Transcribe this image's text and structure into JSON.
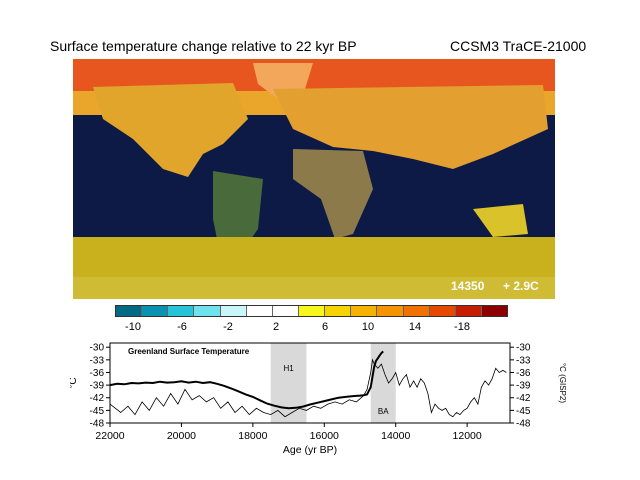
{
  "header": {
    "title": "Surface temperature change relative to 22 kyr BP",
    "model": "CCSM3 TraCE-21000"
  },
  "map": {
    "year_label": "14350",
    "anomaly_label": "+ 2.9C",
    "ocean_color": "#0d1a45",
    "polar_warm_color": "#e8561f",
    "midlat_color": "#e9a62b",
    "tropical_color": "#c8b11d",
    "land_colors": [
      "#8d7a4a",
      "#496a3a",
      "#d2b98a"
    ]
  },
  "colorbar": {
    "colors": [
      "#006a85",
      "#0a93b0",
      "#27c3d8",
      "#6fe2ee",
      "#c8f6fa",
      "#ffffff",
      "#ffffff",
      "#f7f71e",
      "#f5d400",
      "#f5b300",
      "#f59300",
      "#f07000",
      "#e64a00",
      "#c81e00",
      "#8c0000"
    ],
    "tick_labels": [
      "-10",
      "-6",
      "-2",
      "2",
      "6",
      "10",
      "14",
      "-18"
    ]
  },
  "chart_data": {
    "type": "line",
    "title": "Greenland Surface Temperature",
    "xlabel": "Age (yr BP)",
    "ylabel_left": "°C",
    "ylabel_right": "°C (GISP2)",
    "xlim": [
      22000,
      10800
    ],
    "ylim": [
      -48,
      -29
    ],
    "x_ticks": [
      22000,
      20000,
      18000,
      16000,
      14000,
      12000
    ],
    "x_tick_labels": [
      "22000",
      "20000",
      "18000",
      "16000",
      "14000",
      "12000"
    ],
    "y_ticks": [
      -30,
      -33,
      -36,
      -39,
      -42,
      -45,
      -48
    ],
    "y_tick_labels": [
      "-30",
      "-33",
      "-36",
      "-39",
      "-42",
      "-45",
      "-48"
    ],
    "shaded_regions": [
      {
        "label": "H1",
        "x_start": 17500,
        "x_end": 16500
      },
      {
        "label": "BA",
        "x_start": 14700,
        "x_end": 14000
      }
    ],
    "series": [
      {
        "x": [
          22000,
          21800,
          21600,
          21400,
          21200,
          21000,
          20800,
          20600,
          20400,
          20200,
          20000,
          19800,
          19600,
          19400,
          19200,
          19000,
          18800,
          18600,
          18400,
          18200,
          18000,
          17800,
          17600,
          17400,
          17200,
          17000,
          16800,
          16600,
          16400,
          16200,
          16000,
          15800,
          15600,
          15400,
          15200,
          15000,
          14900,
          14800,
          14700,
          14650,
          14600,
          14550,
          14500,
          14450,
          14400,
          14350
        ],
        "y": [
          -39.0,
          -38.7,
          -38.8,
          -38.5,
          -38.6,
          -38.4,
          -38.5,
          -38.2,
          -38.4,
          -38.3,
          -38.1,
          -38.4,
          -38.2,
          -38.5,
          -38.3,
          -38.7,
          -39.2,
          -39.8,
          -40.5,
          -41.2,
          -41.8,
          -42.6,
          -43.4,
          -43.9,
          -44.3,
          -44.5,
          -44.4,
          -44.1,
          -43.6,
          -43.2,
          -42.8,
          -42.4,
          -42.0,
          -41.8,
          -41.6,
          -41.5,
          -41.4,
          -41.2,
          -39.5,
          -37.0,
          -34.5,
          -33.2,
          -32.6,
          -32.0,
          -31.4,
          -31.0
        ],
        "style": "thick"
      },
      {
        "x": [
          22000,
          21700,
          21500,
          21300,
          21100,
          20900,
          20700,
          20500,
          20300,
          20100,
          19900,
          19700,
          19500,
          19300,
          19100,
          18900,
          18700,
          18500,
          18300,
          18100,
          17900,
          17700,
          17500,
          17300,
          17100,
          16900,
          16700,
          16500,
          16300,
          16100,
          15900,
          15700,
          15500,
          15300,
          15100,
          14900,
          14800,
          14700,
          14650,
          14600,
          14500,
          14400,
          14300,
          14200,
          14100,
          14000,
          13900,
          13800,
          13700,
          13600,
          13500,
          13400,
          13300,
          13200,
          13100,
          13000,
          12900,
          12800,
          12700,
          12600,
          12500,
          12400,
          12300,
          12200,
          12100,
          12000,
          11900,
          11800,
          11700,
          11600,
          11500,
          11400,
          11300,
          11200,
          11100,
          11000,
          10900
        ],
        "y": [
          -43.5,
          -45.5,
          -44.0,
          -46.0,
          -43.0,
          -45.0,
          -42.0,
          -44.0,
          -41.0,
          -43.5,
          -40.0,
          -42.5,
          -41.5,
          -43.0,
          -42.0,
          -44.5,
          -43.0,
          -45.5,
          -44.0,
          -46.0,
          -44.5,
          -45.5,
          -46.0,
          -45.0,
          -46.5,
          -45.5,
          -44.5,
          -45.0,
          -44.0,
          -44.5,
          -43.5,
          -43.0,
          -43.5,
          -42.5,
          -43.0,
          -41.5,
          -40.0,
          -36.0,
          -33.0,
          -34.0,
          -35.0,
          -34.0,
          -36.5,
          -38.5,
          -37.5,
          -36.0,
          -39.0,
          -37.5,
          -36.5,
          -39.5,
          -38.0,
          -39.5,
          -37.5,
          -38.5,
          -41.0,
          -45.5,
          -43.5,
          -44.5,
          -45.0,
          -44.5,
          -46.0,
          -46.5,
          -45.5,
          -46.0,
          -45.0,
          -44.5,
          -43.0,
          -42.0,
          -43.5,
          -39.5,
          -38.0,
          -39.0,
          -37.5,
          -35.0,
          -36.0,
          -35.5,
          -36.0
        ],
        "style": "thin"
      }
    ]
  }
}
